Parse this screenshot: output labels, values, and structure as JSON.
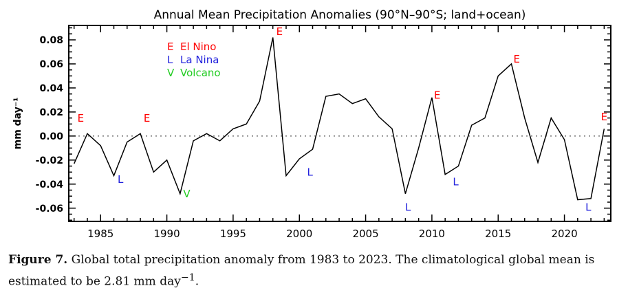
{
  "chart_data": {
    "type": "line",
    "title": "Annual Mean Precipitation Anomalies (90°N–90°S; land+ocean)",
    "xlabel": "",
    "ylabel": "mm day⁻¹",
    "xlim": [
      1982.6,
      1983.0
    ],
    "xrange": [
      1982.6,
      2023.5
    ],
    "ylim": [
      -0.071,
      0.092
    ],
    "xticks": [
      1985,
      1990,
      1995,
      2000,
      2005,
      2010,
      2015,
      2020
    ],
    "yticks": [
      -0.06,
      -0.04,
      -0.02,
      0.0,
      0.02,
      0.04,
      0.06,
      0.08
    ],
    "ytick_labels": [
      "-0.06",
      "-0.04",
      "-0.02",
      "0.00",
      "0.02",
      "0.04",
      "0.06",
      "0.08"
    ],
    "zero_line": "dotted",
    "x": [
      1983,
      1984,
      1985,
      1986,
      1987,
      1988,
      1989,
      1990,
      1991,
      1992,
      1993,
      1994,
      1995,
      1996,
      1997,
      1998,
      1999,
      2000,
      2001,
      2002,
      2003,
      2004,
      2005,
      2006,
      2007,
      2008,
      2009,
      2010,
      2011,
      2012,
      2013,
      2014,
      2015,
      2016,
      2017,
      2018,
      2019,
      2020,
      2021,
      2022,
      2023
    ],
    "series": [
      {
        "name": "Anomaly",
        "color": "#000000",
        "values": [
          -0.023,
          0.002,
          -0.008,
          -0.033,
          -0.005,
          0.002,
          -0.03,
          -0.02,
          -0.048,
          -0.004,
          0.002,
          -0.004,
          0.006,
          0.01,
          0.029,
          0.082,
          -0.033,
          -0.019,
          -0.011,
          0.033,
          0.035,
          0.027,
          0.031,
          0.016,
          0.006,
          -0.048,
          -0.01,
          0.032,
          -0.032,
          -0.025,
          0.009,
          0.015,
          0.05,
          0.06,
          0.015,
          -0.022,
          0.015,
          -0.003,
          -0.053,
          -0.052,
          0.006
        ]
      }
    ],
    "legend": {
      "position": "top-left",
      "entries": [
        {
          "symbol": "E",
          "label": "El Nino",
          "color": "#ff0000"
        },
        {
          "symbol": "L",
          "label": "La Nina",
          "color": "#2222dd"
        },
        {
          "symbol": "V",
          "label": "Volcano",
          "color": "#22cc22"
        }
      ]
    },
    "annotations": [
      {
        "text": "E",
        "x": 1983.5,
        "y": 0.012,
        "color": "#ff0000"
      },
      {
        "text": "L",
        "x": 1986.5,
        "y": -0.039,
        "color": "#2222dd"
      },
      {
        "text": "E",
        "x": 1988.5,
        "y": 0.012,
        "color": "#ff0000"
      },
      {
        "text": "V",
        "x": 1991.5,
        "y": -0.051,
        "color": "#22cc22"
      },
      {
        "text": "E",
        "x": 1998.5,
        "y": 0.084,
        "color": "#ff0000"
      },
      {
        "text": "L",
        "x": 2000.8,
        "y": -0.033,
        "color": "#2222dd"
      },
      {
        "text": "L",
        "x": 2008.2,
        "y": -0.062,
        "color": "#2222dd"
      },
      {
        "text": "E",
        "x": 2010.4,
        "y": 0.031,
        "color": "#ff0000"
      },
      {
        "text": "L",
        "x": 2011.8,
        "y": -0.041,
        "color": "#2222dd"
      },
      {
        "text": "E",
        "x": 2016.4,
        "y": 0.061,
        "color": "#ff0000"
      },
      {
        "text": "L",
        "x": 2021.8,
        "y": -0.062,
        "color": "#2222dd"
      },
      {
        "text": "E",
        "x": 2023.0,
        "y": 0.013,
        "color": "#ff0000"
      }
    ]
  },
  "caption": {
    "label": "Figure 7.",
    "text": " Global total precipitation anomaly from 1983 to 2023. The climatological global mean is estimated to be 2.81 mm day",
    "sup": "−1",
    "end": "."
  }
}
